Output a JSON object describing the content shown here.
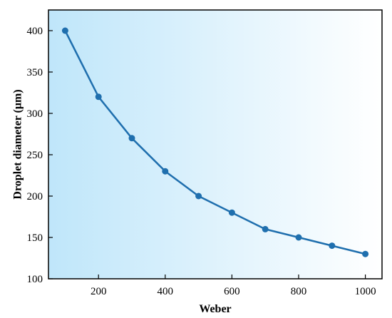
{
  "chart_data": {
    "type": "line",
    "title": "",
    "xlabel": "Weber",
    "ylabel": "Droplet diameter (μm)",
    "xlim": [
      50,
      1050
    ],
    "ylim": [
      100,
      425
    ],
    "xticks": [
      200,
      400,
      600,
      800,
      1000
    ],
    "yticks": [
      100,
      150,
      200,
      250,
      300,
      350,
      400
    ],
    "x": [
      100,
      200,
      300,
      400,
      500,
      600,
      700,
      800,
      900,
      1000
    ],
    "series": [
      {
        "values": [
          400,
          320,
          270,
          230,
          200,
          180,
          160,
          150,
          140,
          130
        ]
      }
    ],
    "grid": false,
    "legend": "none",
    "colors": {
      "line": "#1f6fae",
      "marker": "#1f6fae",
      "background_left": "#bfe6fa",
      "background_right": "#ffffff"
    }
  }
}
